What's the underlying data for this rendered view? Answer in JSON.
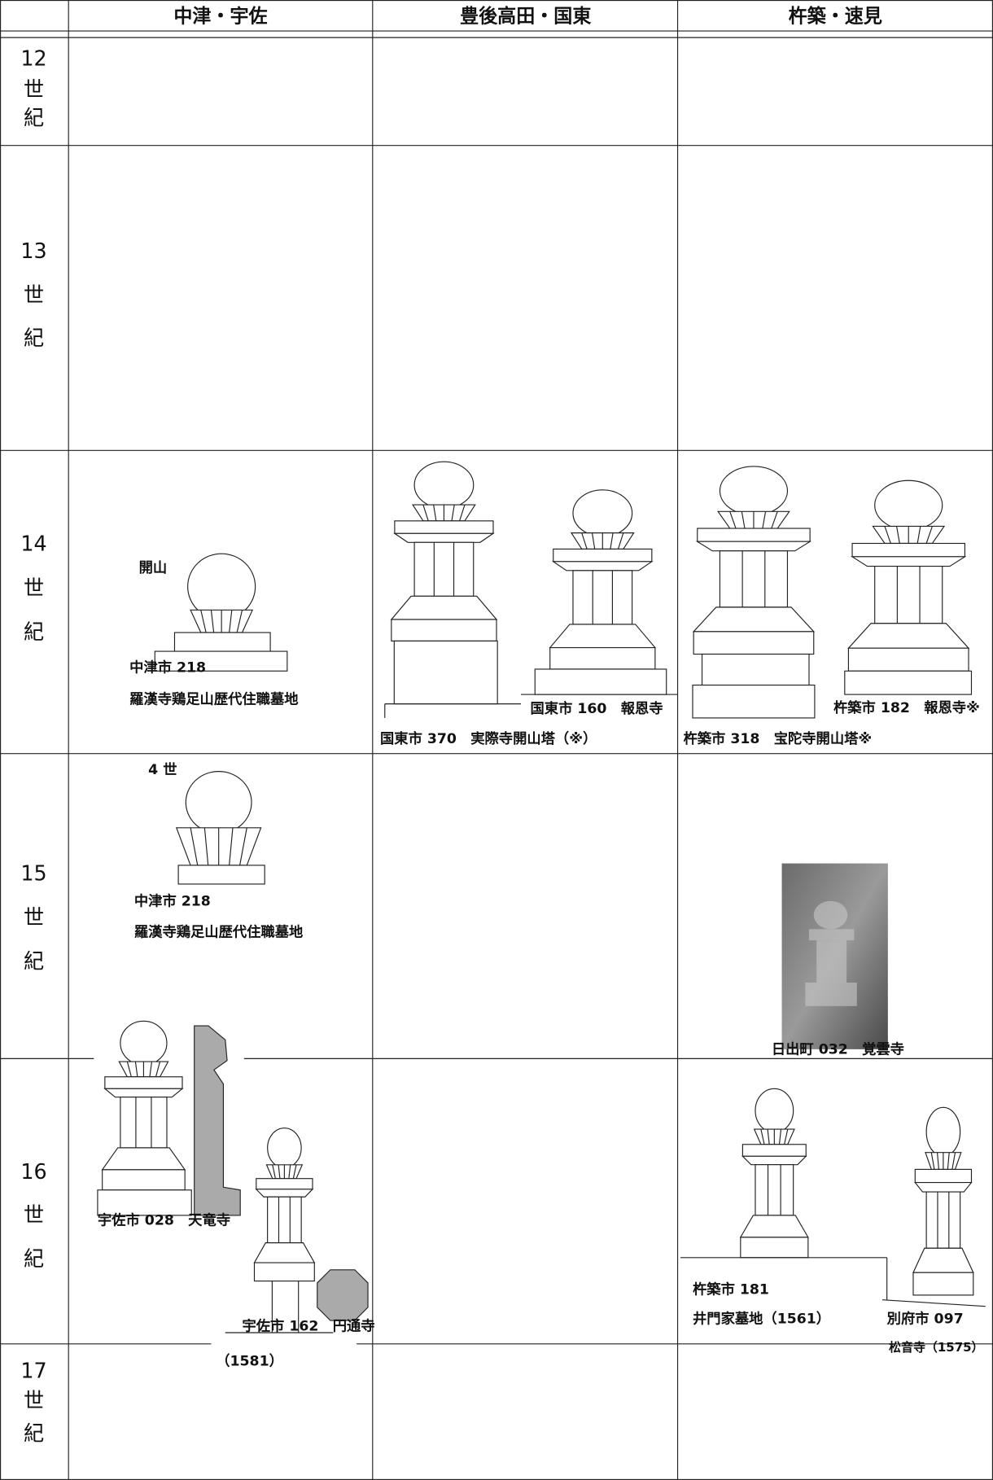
{
  "header": {
    "columns": [
      "中津・宇佐",
      "豊後高田・国東",
      "杵築・速見"
    ]
  },
  "rows": [
    {
      "century": [
        "12",
        "世",
        "紀"
      ],
      "captions": []
    },
    {
      "century": [
        "13",
        "世",
        "紀"
      ],
      "captions": []
    },
    {
      "century": [
        "14",
        "世",
        "紀"
      ],
      "captions": [
        "開山",
        "中津市 218",
        "羅漢寺鶏足山歴代住職墓地",
        "国東市 160　報恩寺",
        "国東市 370　実際寺開山塔（※）",
        "杵築市 182　報恩寺※",
        "杵築市 318　宝陀寺開山塔※"
      ]
    },
    {
      "century": [
        "15",
        "世",
        "紀"
      ],
      "captions": [
        "4 世",
        "中津市 218",
        "羅漢寺鶏足山歴代住職墓地",
        "日出町 032　覚雲寺"
      ]
    },
    {
      "century": [
        "16",
        "世",
        "紀"
      ],
      "captions": [
        "宇佐市 028　天竜寺",
        "宇佐市 162　円通寺",
        "（1581）",
        "杵築市 181",
        "井門家墓地（1561）",
        "別府市 097",
        "松音寺（1575）"
      ]
    },
    {
      "century": [
        "17",
        "世",
        "紀"
      ],
      "captions": []
    }
  ]
}
